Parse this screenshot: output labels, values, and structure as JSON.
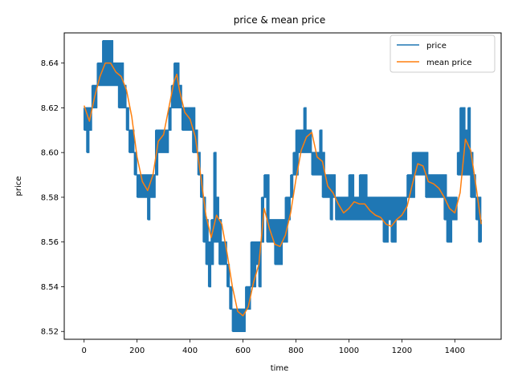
{
  "chart_data": {
    "type": "line",
    "title": "price & mean price",
    "xlabel": "time",
    "ylabel": "price",
    "xlim": [
      -75,
      1575
    ],
    "ylim": [
      8.5165,
      8.6535
    ],
    "xticks": [
      0,
      200,
      400,
      600,
      800,
      1000,
      1200,
      1400
    ],
    "yticks": [
      8.52,
      8.54,
      8.56,
      8.58,
      8.6,
      8.62,
      8.64
    ],
    "ytick_labels": [
      "8.52",
      "8.54",
      "8.56",
      "8.58",
      "8.60",
      "8.62",
      "8.64"
    ],
    "grid": false,
    "legend_position": "top-right",
    "series": [
      {
        "name": "price",
        "color": "#1f77b4",
        "style": "noisy-band",
        "points": [
          [
            0,
            8.61,
            8.62
          ],
          [
            10,
            8.6,
            8.62
          ],
          [
            20,
            8.61,
            8.62
          ],
          [
            30,
            8.62,
            8.63
          ],
          [
            40,
            8.62,
            8.63
          ],
          [
            50,
            8.63,
            8.64
          ],
          [
            60,
            8.63,
            8.64
          ],
          [
            70,
            8.63,
            8.65
          ],
          [
            80,
            8.63,
            8.65
          ],
          [
            90,
            8.63,
            8.65
          ],
          [
            100,
            8.63,
            8.65
          ],
          [
            110,
            8.63,
            8.64
          ],
          [
            120,
            8.63,
            8.64
          ],
          [
            130,
            8.62,
            8.64
          ],
          [
            140,
            8.62,
            8.64
          ],
          [
            150,
            8.62,
            8.63
          ],
          [
            160,
            8.61,
            8.62
          ],
          [
            170,
            8.6,
            8.61
          ],
          [
            180,
            8.6,
            8.61
          ],
          [
            190,
            8.59,
            8.6
          ],
          [
            200,
            8.58,
            8.59
          ],
          [
            210,
            8.58,
            8.59
          ],
          [
            220,
            8.58,
            8.59
          ],
          [
            230,
            8.58,
            8.59
          ],
          [
            240,
            8.57,
            8.59
          ],
          [
            250,
            8.58,
            8.59
          ],
          [
            260,
            8.58,
            8.59
          ],
          [
            270,
            8.59,
            8.61
          ],
          [
            280,
            8.6,
            8.61
          ],
          [
            290,
            8.6,
            8.61
          ],
          [
            300,
            8.6,
            8.61
          ],
          [
            310,
            8.6,
            8.61
          ],
          [
            320,
            8.61,
            8.62
          ],
          [
            330,
            8.62,
            8.63
          ],
          [
            340,
            8.62,
            8.64
          ],
          [
            350,
            8.62,
            8.64
          ],
          [
            360,
            8.62,
            8.63
          ],
          [
            370,
            8.61,
            8.62
          ],
          [
            380,
            8.61,
            8.62
          ],
          [
            390,
            8.61,
            8.62
          ],
          [
            400,
            8.61,
            8.62
          ],
          [
            410,
            8.6,
            8.62
          ],
          [
            420,
            8.6,
            8.61
          ],
          [
            430,
            8.59,
            8.6
          ],
          [
            440,
            8.58,
            8.59
          ],
          [
            450,
            8.56,
            8.58
          ],
          [
            460,
            8.55,
            8.57
          ],
          [
            470,
            8.54,
            8.56
          ],
          [
            480,
            8.55,
            8.57
          ],
          [
            490,
            8.56,
            8.6
          ],
          [
            500,
            8.56,
            8.58
          ],
          [
            510,
            8.55,
            8.57
          ],
          [
            520,
            8.55,
            8.56
          ],
          [
            530,
            8.55,
            8.56
          ],
          [
            540,
            8.54,
            8.55
          ],
          [
            550,
            8.53,
            8.54
          ],
          [
            560,
            8.52,
            8.53
          ],
          [
            570,
            8.52,
            8.53
          ],
          [
            580,
            8.52,
            8.53
          ],
          [
            590,
            8.52,
            8.53
          ],
          [
            600,
            8.52,
            8.53
          ],
          [
            610,
            8.53,
            8.54
          ],
          [
            620,
            8.53,
            8.54
          ],
          [
            630,
            8.54,
            8.56
          ],
          [
            640,
            8.54,
            8.56
          ],
          [
            650,
            8.55,
            8.56
          ],
          [
            660,
            8.54,
            8.56
          ],
          [
            670,
            8.56,
            8.58
          ],
          [
            680,
            8.58,
            8.59
          ],
          [
            690,
            8.56,
            8.59
          ],
          [
            700,
            8.56,
            8.57
          ],
          [
            710,
            8.56,
            8.57
          ],
          [
            720,
            8.55,
            8.57
          ],
          [
            730,
            8.55,
            8.57
          ],
          [
            740,
            8.55,
            8.57
          ],
          [
            750,
            8.56,
            8.57
          ],
          [
            760,
            8.56,
            8.58
          ],
          [
            770,
            8.57,
            8.58
          ],
          [
            780,
            8.58,
            8.59
          ],
          [
            790,
            8.59,
            8.6
          ],
          [
            800,
            8.59,
            8.61
          ],
          [
            810,
            8.6,
            8.61
          ],
          [
            820,
            8.6,
            8.61
          ],
          [
            830,
            8.6,
            8.62
          ],
          [
            840,
            8.6,
            8.61
          ],
          [
            850,
            8.6,
            8.61
          ],
          [
            860,
            8.59,
            8.6
          ],
          [
            870,
            8.59,
            8.6
          ],
          [
            880,
            8.59,
            8.6
          ],
          [
            890,
            8.59,
            8.61
          ],
          [
            900,
            8.58,
            8.6
          ],
          [
            910,
            8.58,
            8.59
          ],
          [
            920,
            8.58,
            8.59
          ],
          [
            930,
            8.57,
            8.59
          ],
          [
            940,
            8.58,
            8.59
          ],
          [
            950,
            8.57,
            8.58
          ],
          [
            960,
            8.57,
            8.58
          ],
          [
            970,
            8.57,
            8.58
          ],
          [
            980,
            8.57,
            8.58
          ],
          [
            990,
            8.57,
            8.58
          ],
          [
            1000,
            8.57,
            8.59
          ],
          [
            1010,
            8.57,
            8.59
          ],
          [
            1020,
            8.57,
            8.58
          ],
          [
            1030,
            8.57,
            8.58
          ],
          [
            1040,
            8.57,
            8.59
          ],
          [
            1050,
            8.57,
            8.59
          ],
          [
            1060,
            8.57,
            8.59
          ],
          [
            1070,
            8.57,
            8.58
          ],
          [
            1080,
            8.57,
            8.58
          ],
          [
            1090,
            8.57,
            8.58
          ],
          [
            1100,
            8.57,
            8.58
          ],
          [
            1110,
            8.57,
            8.58
          ],
          [
            1120,
            8.57,
            8.58
          ],
          [
            1130,
            8.56,
            8.58
          ],
          [
            1140,
            8.56,
            8.58
          ],
          [
            1150,
            8.57,
            8.58
          ],
          [
            1160,
            8.56,
            8.58
          ],
          [
            1170,
            8.56,
            8.58
          ],
          [
            1180,
            8.57,
            8.58
          ],
          [
            1190,
            8.57,
            8.58
          ],
          [
            1200,
            8.57,
            8.58
          ],
          [
            1210,
            8.57,
            8.58
          ],
          [
            1220,
            8.58,
            8.59
          ],
          [
            1230,
            8.58,
            8.59
          ],
          [
            1240,
            8.58,
            8.6
          ],
          [
            1250,
            8.59,
            8.6
          ],
          [
            1260,
            8.59,
            8.6
          ],
          [
            1270,
            8.59,
            8.6
          ],
          [
            1280,
            8.59,
            8.6
          ],
          [
            1290,
            8.58,
            8.6
          ],
          [
            1300,
            8.58,
            8.59
          ],
          [
            1310,
            8.58,
            8.59
          ],
          [
            1320,
            8.58,
            8.59
          ],
          [
            1330,
            8.58,
            8.59
          ],
          [
            1340,
            8.58,
            8.59
          ],
          [
            1350,
            8.58,
            8.59
          ],
          [
            1360,
            8.57,
            8.59
          ],
          [
            1370,
            8.56,
            8.58
          ],
          [
            1380,
            8.56,
            8.58
          ],
          [
            1390,
            8.57,
            8.58
          ],
          [
            1400,
            8.57,
            8.58
          ],
          [
            1410,
            8.59,
            8.6
          ],
          [
            1420,
            8.59,
            8.62
          ],
          [
            1430,
            8.59,
            8.62
          ],
          [
            1440,
            8.59,
            8.61
          ],
          [
            1450,
            8.59,
            8.62
          ],
          [
            1460,
            8.58,
            8.6
          ],
          [
            1470,
            8.58,
            8.59
          ],
          [
            1480,
            8.57,
            8.58
          ],
          [
            1490,
            8.56,
            8.58
          ],
          [
            1500,
            8.56,
            8.57
          ]
        ]
      },
      {
        "name": "mean price",
        "color": "#ff7f0e",
        "style": "line",
        "x": [
          0,
          20,
          40,
          60,
          80,
          100,
          120,
          140,
          160,
          180,
          200,
          220,
          240,
          260,
          280,
          300,
          320,
          340,
          350,
          360,
          380,
          400,
          420,
          440,
          460,
          480,
          500,
          520,
          540,
          560,
          580,
          600,
          620,
          640,
          660,
          680,
          700,
          720,
          740,
          760,
          780,
          800,
          820,
          840,
          860,
          880,
          900,
          920,
          940,
          960,
          980,
          1000,
          1020,
          1040,
          1060,
          1080,
          1100,
          1120,
          1140,
          1160,
          1180,
          1200,
          1220,
          1240,
          1260,
          1280,
          1300,
          1320,
          1340,
          1360,
          1380,
          1400,
          1420,
          1440,
          1460,
          1480,
          1500
        ],
        "y": [
          8.621,
          8.614,
          8.625,
          8.634,
          8.64,
          8.64,
          8.636,
          8.634,
          8.628,
          8.616,
          8.598,
          8.587,
          8.583,
          8.59,
          8.605,
          8.608,
          8.62,
          8.632,
          8.635,
          8.628,
          8.618,
          8.615,
          8.607,
          8.59,
          8.572,
          8.562,
          8.572,
          8.568,
          8.555,
          8.54,
          8.529,
          8.527,
          8.531,
          8.542,
          8.55,
          8.575,
          8.566,
          8.559,
          8.558,
          8.563,
          8.573,
          8.588,
          8.601,
          8.607,
          8.609,
          8.598,
          8.596,
          8.585,
          8.582,
          8.577,
          8.573,
          8.575,
          8.578,
          8.577,
          8.577,
          8.574,
          8.572,
          8.571,
          8.568,
          8.567,
          8.57,
          8.572,
          8.576,
          8.586,
          8.595,
          8.594,
          8.587,
          8.586,
          8.584,
          8.58,
          8.575,
          8.573,
          8.582,
          8.606,
          8.601,
          8.585,
          8.568
        ]
      }
    ]
  }
}
